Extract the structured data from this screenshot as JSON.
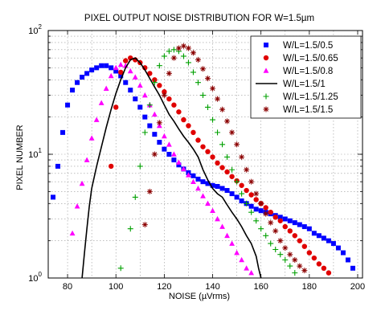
{
  "chart_data": {
    "type": "scatter",
    "title": "PIXEL OUTPUT NOISE DISTRIBUTION FOR W=1.5µm",
    "xlabel": "NOISE (µVrms)",
    "ylabel": "PIXEL NUMBER",
    "xlim": [
      72,
      202
    ],
    "ylim": [
      1,
      100
    ],
    "yscale": "log",
    "grid": true,
    "legend_position": "top-right",
    "x_ticks": [
      {
        "value": 80,
        "label": "80"
      },
      {
        "value": 100,
        "label": "100"
      },
      {
        "value": 120,
        "label": "120"
      },
      {
        "value": 140,
        "label": "140"
      },
      {
        "value": 160,
        "label": "160"
      },
      {
        "value": 180,
        "label": "180"
      },
      {
        "value": 200,
        "label": "200"
      }
    ],
    "y_ticks": [
      {
        "value": 1,
        "base": "10",
        "exp": "0"
      },
      {
        "value": 10,
        "base": "10",
        "exp": "1"
      },
      {
        "value": 100,
        "base": "10",
        "exp": "2"
      }
    ],
    "series": [
      {
        "name": "W/L=1.5/0.5",
        "color": "#0000ff",
        "marker": "square",
        "points": [
          [
            74,
            4.5
          ],
          [
            76,
            8
          ],
          [
            78,
            15
          ],
          [
            80,
            25
          ],
          [
            82,
            33
          ],
          [
            84,
            38
          ],
          [
            86,
            42
          ],
          [
            88,
            45
          ],
          [
            90,
            48
          ],
          [
            92,
            50
          ],
          [
            94,
            52
          ],
          [
            96,
            52
          ],
          [
            98,
            50
          ],
          [
            100,
            47
          ],
          [
            102,
            43
          ],
          [
            104,
            38
          ],
          [
            106,
            33
          ],
          [
            108,
            28
          ],
          [
            110,
            24
          ],
          [
            112,
            20
          ],
          [
            114,
            17
          ],
          [
            116,
            14.5
          ],
          [
            118,
            12.5
          ],
          [
            120,
            11
          ],
          [
            122,
            10
          ],
          [
            124,
            9
          ],
          [
            126,
            8.2
          ],
          [
            128,
            7.6
          ],
          [
            130,
            7.1
          ],
          [
            132,
            6.7
          ],
          [
            134,
            6.3
          ],
          [
            136,
            6
          ],
          [
            138,
            5.8
          ],
          [
            140,
            5.6
          ],
          [
            142,
            5.5
          ],
          [
            144,
            5.3
          ],
          [
            146,
            5.1
          ],
          [
            148,
            4.8
          ],
          [
            150,
            4.5
          ],
          [
            152,
            4.2
          ],
          [
            154,
            4
          ],
          [
            156,
            3.8
          ],
          [
            158,
            3.6
          ],
          [
            160,
            3.5
          ],
          [
            162,
            3.4
          ],
          [
            164,
            3.3
          ],
          [
            166,
            3.2
          ],
          [
            168,
            3.1
          ],
          [
            170,
            3
          ],
          [
            172,
            2.9
          ],
          [
            174,
            2.8
          ],
          [
            176,
            2.7
          ],
          [
            178,
            2.6
          ],
          [
            180,
            2.5
          ],
          [
            182,
            2.3
          ],
          [
            184,
            2.2
          ],
          [
            186,
            2.1
          ],
          [
            188,
            2
          ],
          [
            190,
            1.9
          ],
          [
            192,
            1.75
          ],
          [
            194,
            1.6
          ],
          [
            196,
            1.4
          ],
          [
            198,
            1.2
          ]
        ]
      },
      {
        "name": "W/L=1.5/0.65",
        "color": "#e00000",
        "marker": "circle",
        "points": [
          [
            98,
            8
          ],
          [
            100,
            24
          ],
          [
            102,
            46
          ],
          [
            104,
            57
          ],
          [
            106,
            60
          ],
          [
            108,
            58
          ],
          [
            110,
            55
          ],
          [
            112,
            50
          ],
          [
            114,
            45
          ],
          [
            116,
            40
          ],
          [
            118,
            36
          ],
          [
            120,
            32
          ],
          [
            122,
            28
          ],
          [
            124,
            25
          ],
          [
            126,
            22
          ],
          [
            128,
            19
          ],
          [
            130,
            17
          ],
          [
            132,
            15
          ],
          [
            134,
            13
          ],
          [
            136,
            11.5
          ],
          [
            138,
            10.5
          ],
          [
            140,
            9.5
          ],
          [
            142,
            8.5
          ],
          [
            144,
            7.8
          ],
          [
            146,
            7.2
          ],
          [
            148,
            6.6
          ],
          [
            150,
            6.1
          ],
          [
            152,
            5.6
          ],
          [
            154,
            5.1
          ],
          [
            156,
            4.7
          ],
          [
            158,
            4.3
          ],
          [
            160,
            4
          ],
          [
            162,
            3.7
          ],
          [
            164,
            3.4
          ],
          [
            166,
            3.1
          ],
          [
            168,
            2.9
          ],
          [
            170,
            2.6
          ],
          [
            172,
            2.4
          ],
          [
            174,
            2.2
          ],
          [
            176,
            2
          ],
          [
            178,
            1.8
          ],
          [
            180,
            1.6
          ],
          [
            182,
            1.45
          ],
          [
            184,
            1.3
          ],
          [
            186,
            1.2
          ],
          [
            188,
            1.1
          ]
        ]
      },
      {
        "name": "W/L=1.5/0.8",
        "color": "#ff00ff",
        "marker": "triangle",
        "points": [
          [
            82,
            2.3
          ],
          [
            84,
            3.8
          ],
          [
            86,
            5.8
          ],
          [
            88,
            9
          ],
          [
            90,
            13.5
          ],
          [
            92,
            19
          ],
          [
            94,
            26
          ],
          [
            96,
            34
          ],
          [
            98,
            43
          ],
          [
            100,
            50
          ],
          [
            102,
            53
          ],
          [
            104,
            52
          ],
          [
            106,
            47
          ],
          [
            108,
            42
          ],
          [
            110,
            36
          ],
          [
            112,
            30
          ],
          [
            114,
            25
          ],
          [
            116,
            21
          ],
          [
            118,
            17
          ],
          [
            120,
            14
          ],
          [
            122,
            12
          ],
          [
            124,
            10
          ],
          [
            126,
            8.6
          ],
          [
            128,
            7.6
          ],
          [
            130,
            6.8
          ],
          [
            132,
            6
          ],
          [
            134,
            5.3
          ],
          [
            136,
            4.6
          ],
          [
            138,
            4
          ],
          [
            140,
            3.5
          ],
          [
            142,
            3
          ],
          [
            144,
            2.6
          ],
          [
            146,
            2.2
          ],
          [
            148,
            1.9
          ],
          [
            150,
            1.6
          ],
          [
            152,
            1.4
          ],
          [
            154,
            1.2
          ],
          [
            156,
            1.1
          ]
        ]
      },
      {
        "name": "W/L=1.5/1",
        "color": "#000000",
        "marker": "line",
        "points": [
          [
            86,
            1
          ],
          [
            87,
            1.6
          ],
          [
            88,
            2.5
          ],
          [
            89,
            3.8
          ],
          [
            90,
            5.3
          ],
          [
            92,
            8
          ],
          [
            94,
            11.5
          ],
          [
            96,
            16.5
          ],
          [
            98,
            23
          ],
          [
            100,
            31
          ],
          [
            102,
            40
          ],
          [
            104,
            50
          ],
          [
            106,
            58
          ],
          [
            108,
            60
          ],
          [
            110,
            55
          ],
          [
            112,
            48
          ],
          [
            114,
            41
          ],
          [
            116,
            35
          ],
          [
            118,
            30
          ],
          [
            120,
            25
          ],
          [
            122,
            21
          ],
          [
            124,
            18.5
          ],
          [
            126,
            16
          ],
          [
            128,
            14
          ],
          [
            130,
            12.5
          ],
          [
            132,
            11
          ],
          [
            134,
            9.5
          ],
          [
            136,
            7.5
          ],
          [
            138,
            6.2
          ],
          [
            140,
            5.3
          ],
          [
            142,
            4.8
          ],
          [
            144,
            4.5
          ],
          [
            146,
            3.9
          ],
          [
            148,
            3.4
          ],
          [
            150,
            3
          ],
          [
            152,
            2.6
          ],
          [
            154,
            2.2
          ],
          [
            156,
            1.9
          ],
          [
            158,
            1.5
          ],
          [
            159,
            1.2
          ],
          [
            160,
            1
          ]
        ]
      },
      {
        "name": "W/L=1.5/1.25",
        "color": "#00a000",
        "marker": "plus",
        "points": [
          [
            102,
            1.2
          ],
          [
            106,
            2.5
          ],
          [
            108,
            4.5
          ],
          [
            110,
            8
          ],
          [
            112,
            15
          ],
          [
            114,
            25
          ],
          [
            116,
            38
          ],
          [
            118,
            52
          ],
          [
            120,
            62
          ],
          [
            122,
            68
          ],
          [
            124,
            70
          ],
          [
            126,
            68
          ],
          [
            128,
            62
          ],
          [
            130,
            55
          ],
          [
            132,
            46
          ],
          [
            134,
            38
          ],
          [
            136,
            30
          ],
          [
            138,
            24
          ],
          [
            140,
            19
          ],
          [
            142,
            15
          ],
          [
            144,
            12
          ],
          [
            146,
            9.5
          ],
          [
            148,
            7.5
          ],
          [
            150,
            6
          ],
          [
            152,
            4.8
          ],
          [
            154,
            4
          ],
          [
            156,
            3.4
          ],
          [
            158,
            2.9
          ],
          [
            160,
            2.5
          ],
          [
            162,
            2.2
          ],
          [
            164,
            1.9
          ],
          [
            166,
            1.7
          ],
          [
            168,
            1.55
          ],
          [
            170,
            1.4
          ],
          [
            172,
            1.25
          ],
          [
            174,
            1.1
          ]
        ]
      },
      {
        "name": "W/L=1.5/1.5",
        "color": "#8b0000",
        "marker": "star",
        "points": [
          [
            112,
            2.7
          ],
          [
            114,
            5
          ],
          [
            116,
            10
          ],
          [
            118,
            18
          ],
          [
            120,
            30
          ],
          [
            122,
            45
          ],
          [
            124,
            60
          ],
          [
            126,
            72
          ],
          [
            128,
            75
          ],
          [
            130,
            72
          ],
          [
            132,
            66
          ],
          [
            134,
            58
          ],
          [
            136,
            49
          ],
          [
            138,
            41
          ],
          [
            140,
            34
          ],
          [
            142,
            28
          ],
          [
            144,
            23
          ],
          [
            146,
            18.5
          ],
          [
            148,
            15
          ],
          [
            150,
            12
          ],
          [
            152,
            9.5
          ],
          [
            154,
            7.5
          ],
          [
            156,
            6
          ],
          [
            158,
            4.8
          ],
          [
            160,
            4
          ],
          [
            162,
            3.3
          ],
          [
            164,
            2.8
          ],
          [
            166,
            2.4
          ],
          [
            168,
            2
          ],
          [
            170,
            1.75
          ],
          [
            172,
            1.55
          ],
          [
            174,
            1.4
          ],
          [
            176,
            1.25
          ],
          [
            178,
            1.15
          ]
        ]
      }
    ]
  }
}
